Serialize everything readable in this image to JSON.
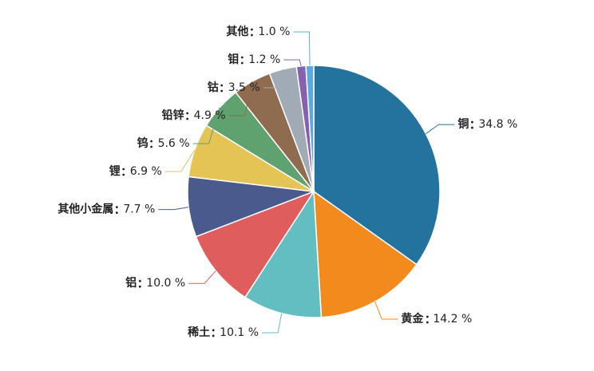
{
  "chart_data": {
    "type": "pie",
    "categories": [
      "铜",
      "黄金",
      "稀土",
      "铝",
      "其他小金属",
      "锂",
      "钨",
      "铅锌",
      "钴",
      "钼",
      "其他"
    ],
    "values": [
      34.8,
      14.2,
      10.1,
      10.0,
      7.7,
      6.9,
      5.6,
      4.9,
      3.5,
      1.2,
      1.0
    ],
    "value_labels": [
      "34.8 %",
      "14.2 %",
      "10.1 %",
      "10.0 %",
      "7.7 %",
      "6.9 %",
      "5.6 %",
      "4.9 %",
      "3.5 %",
      "1.2 %",
      "1.0 %"
    ],
    "colors": [
      "#24739f",
      "#f28a1e",
      "#62bec0",
      "#e05d5d",
      "#4b5a8d",
      "#e3c455",
      "#60a170",
      "#8f6b4f",
      "#a1abb5",
      "#8661b0",
      "#5aaae0"
    ]
  }
}
